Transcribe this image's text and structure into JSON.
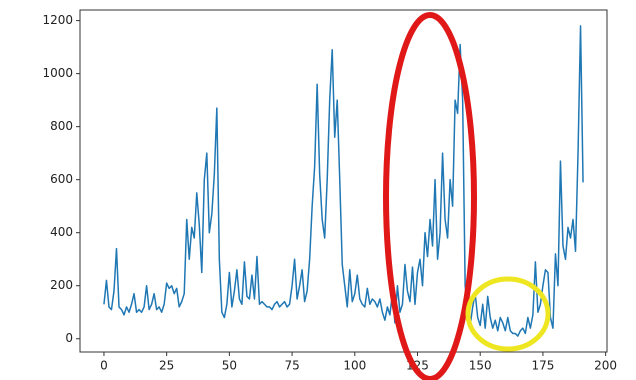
{
  "chart_data": {
    "type": "line",
    "color": "#1f77b4",
    "values": [
      130,
      220,
      120,
      110,
      180,
      340,
      120,
      110,
      90,
      120,
      100,
      130,
      170,
      100,
      110,
      100,
      120,
      200,
      110,
      130,
      170,
      110,
      120,
      100,
      130,
      210,
      190,
      200,
      170,
      190,
      120,
      140,
      170,
      450,
      300,
      420,
      380,
      550,
      430,
      250,
      600,
      700,
      400,
      470,
      620,
      870,
      300,
      100,
      80,
      130,
      250,
      120,
      180,
      260,
      150,
      130,
      290,
      160,
      150,
      240,
      150,
      310,
      130,
      140,
      130,
      120,
      120,
      110,
      130,
      140,
      120,
      130,
      140,
      120,
      130,
      200,
      300,
      150,
      200,
      260,
      140,
      180,
      300,
      500,
      650,
      960,
      620,
      450,
      380,
      600,
      900,
      1090,
      760,
      900,
      600,
      280,
      200,
      120,
      260,
      140,
      170,
      240,
      150,
      130,
      120,
      190,
      130,
      150,
      140,
      120,
      150,
      100,
      70,
      120,
      90,
      170,
      60,
      200,
      100,
      130,
      280,
      180,
      140,
      270,
      130,
      250,
      300,
      200,
      400,
      310,
      450,
      350,
      600,
      300,
      400,
      700,
      450,
      380,
      600,
      500,
      900,
      850,
      1110,
      900,
      200,
      100,
      50,
      120,
      170,
      80,
      50,
      130,
      40,
      160,
      80,
      40,
      70,
      30,
      80,
      60,
      30,
      80,
      30,
      20,
      20,
      10,
      30,
      40,
      20,
      80,
      40,
      90,
      290,
      100,
      130,
      200,
      260,
      250,
      80,
      40,
      320,
      200,
      670,
      350,
      300,
      420,
      380,
      450,
      330,
      700,
      1180,
      590
    ],
    "xlim": [
      -9.55,
      200.55
    ],
    "xticks": [
      0,
      25,
      50,
      75,
      100,
      125,
      150,
      175,
      200
    ],
    "ylim": [
      -50,
      1240
    ],
    "yticks": [
      0,
      200,
      400,
      600,
      800,
      1000,
      1200
    ]
  }
}
